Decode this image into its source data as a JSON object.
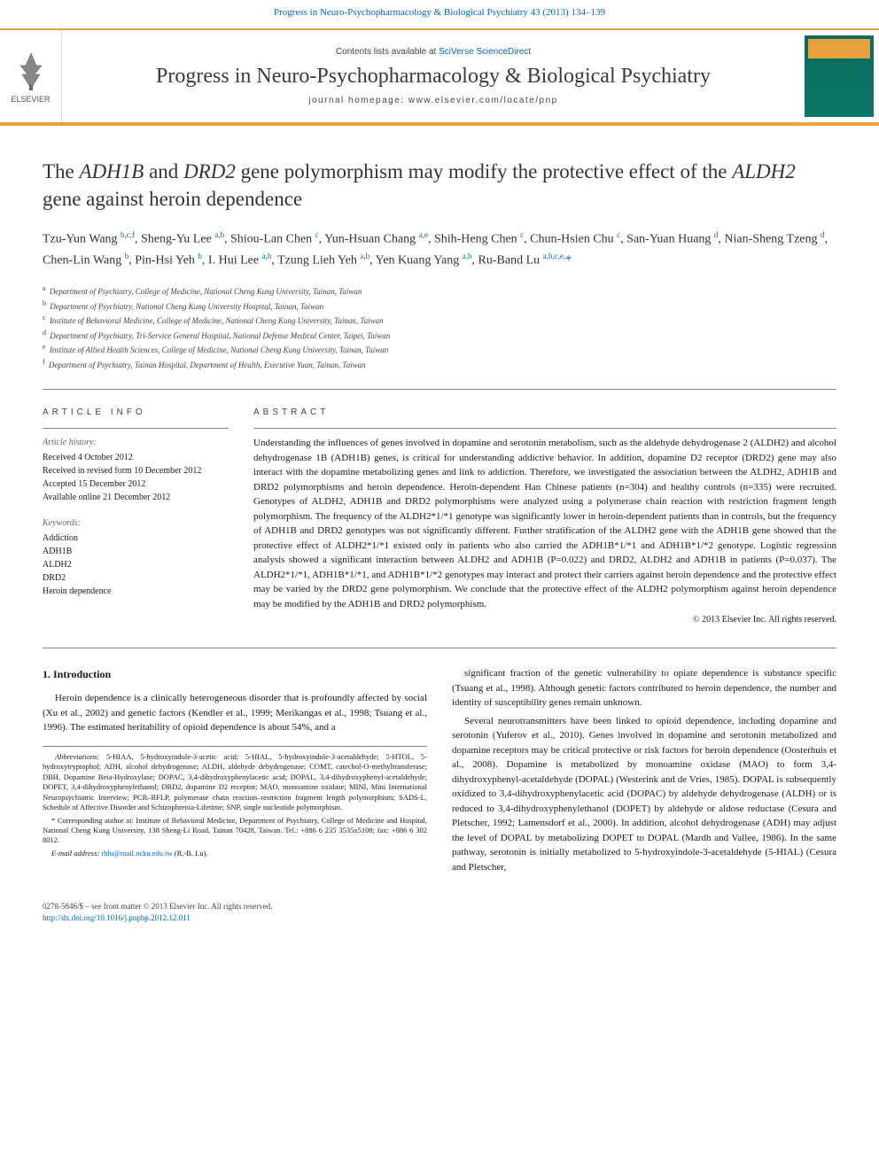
{
  "header": {
    "top_link": "Progress in Neuro-Psychopharmacology & Biological Psychiatry 43 (2013) 134–139",
    "contents_prefix": "Contents lists available at ",
    "contents_link": "SciVerse ScienceDirect",
    "journal_name": "Progress in Neuro-Psychopharmacology & Biological Psychiatry",
    "homepage_label": "journal homepage: www.elsevier.com/locate/pnp",
    "elsevier_label": "ELSEVIER"
  },
  "title": {
    "pre": "The ",
    "g1": "ADH1B",
    "mid1": " and ",
    "g2": "DRD2",
    "mid2": " gene polymorphism may modify the protective effect of the ",
    "g3": "ALDH2",
    "post": " gene against heroin dependence"
  },
  "authors_html": "Tzu-Yun Wang <sup>b,c,f</sup>, Sheng-Yu Lee <sup>a,b</sup>, Shiou-Lan Chen <sup>c</sup>, Yun-Hsuan Chang <sup>a,e</sup>, Shih-Heng Chen <sup>c</sup>, Chun-Hsien Chu <sup>c</sup>, San-Yuan Huang <sup>d</sup>, Nian-Sheng Tzeng <sup>d</sup>, Chen-Lin Wang <sup>b</sup>, Pin-Hsi Yeh <sup>b</sup>, I. Hui Lee <sup>a,b</sup>, Tzung Lieh Yeh <sup>a,b</sup>, Yen Kuang Yang <sup>a,b</sup>, Ru-Band Lu <sup>a,b,c,e,</sup><span class='corr'>*</span>",
  "affiliations": [
    {
      "sup": "a",
      "text": "Department of Psychiatry, College of Medicine, National Cheng Kung University, Tainan, Taiwan"
    },
    {
      "sup": "b",
      "text": "Department of Psychiatry, National Cheng Kung University Hospital, Tainan, Taiwan"
    },
    {
      "sup": "c",
      "text": "Institute of Behavioral Medicine, College of Medicine, National Cheng Kung University, Tainan, Taiwan"
    },
    {
      "sup": "d",
      "text": "Department of Psychiatry, Tri-Service General Hospital, National Defense Medical Center, Taipei, Taiwan"
    },
    {
      "sup": "e",
      "text": "Institute of Allied Health Sciences, College of Medicine, National Cheng Kung University, Tainan, Taiwan"
    },
    {
      "sup": "f",
      "text": "Department of Psychiatry, Tainan Hospital, Department of Health, Executive Yuan, Tainan, Taiwan"
    }
  ],
  "article_info": {
    "label": "ARTICLE INFO",
    "history_label": "Article history:",
    "history": [
      "Received 4 October 2012",
      "Received in revised form 10 December 2012",
      "Accepted 15 December 2012",
      "Available online 21 December 2012"
    ],
    "keywords_label": "Keywords:",
    "keywords": [
      "Addiction",
      "ADH1B",
      "ALDH2",
      "DRD2",
      "Heroin dependence"
    ]
  },
  "abstract": {
    "label": "ABSTRACT",
    "text": "Understanding the influences of genes involved in dopamine and serotonin metabolism, such as the aldehyde dehydrogenase 2 (ALDH2) and alcohol dehydrogenase 1B (ADH1B) genes, is critical for understanding addictive behavior. In addition, dopamine D2 receptor (DRD2) gene may also interact with the dopamine metabolizing genes and link to addiction. Therefore, we investigated the association between the ALDH2, ADH1B and DRD2 polymorphisms and heroin dependence. Heroin-dependent Han Chinese patients (n=304) and healthy controls (n=335) were recruited. Genotypes of ALDH2, ADH1B and DRD2 polymorphisms were analyzed using a polymerase chain reaction with restriction fragment length polymorphism. The frequency of the ALDH2*1/*1 genotype was significantly lower in heroin-dependent patients than in controls, but the frequency of ADH1B and DRD2 genotypes was not significantly different. Further stratification of the ALDH2 gene with the ADH1B gene showed that the protective effect of ALDH2*1/*1 existed only in patients who also carried the ADH1B*1/*1 and ADH1B*1/*2 genotype. Logistic regression analysis showed a significant interaction between ALDH2 and ADH1B (P=0.022) and DRD2, ALDH2 and ADH1B in patients (P=0.037). The ALDH2*1/*1, ADH1B*1/*1, and ADH1B*1/*2 genotypes may interact and protect their carriers against heroin dependence and the protective effect may be varied by the DRD2 gene polymorphism. We conclude that the protective effect of the ALDH2 polymorphism against heroin dependence may be modified by the ADH1B and DRD2 polymorphism.",
    "copyright": "© 2013 Elsevier Inc. All rights reserved."
  },
  "body": {
    "heading": "1. Introduction",
    "left_p1": "Heroin dependence is a clinically heterogeneous disorder that is profoundly affected by social (Xu et al., 2002) and genetic factors (Kendler et al., 1999; Merikangas et al., 1998; Tsuang et al., 1996). The estimated heritability of opioid dependence is about 54%, and a",
    "right_p1": "significant fraction of the genetic vulnerability to opiate dependence is substance specific (Tsuang et al., 1998). Although genetic factors contributed to heroin dependence, the number and identity of susceptibility genes remain unknown.",
    "right_p2": "Several neurotransmitters have been linked to opioid dependence, including dopamine and serotonin (Yuferov et al., 2010). Genes involved in dopamine and serotonin metabolized and dopamine receptors may be critical protective or risk factors for heroin dependence (Oosterhuis et al., 2008). Dopamine is metabolized by monoamine oxidase (MAO) to form 3,4-dihydroxyphenyl-acetaldehyde (DOPAL) (Westerink and de Vries, 1985). DOPAL is subsequently oxidized to 3,4-dihydroxyphenylacetic acid (DOPAC) by aldehyde dehydrogenase (ALDH) or is reduced to 3,4-dihydroxyphenylethanol (DOPET) by aldehyde or aldose reductase (Cesura and Pletscher, 1992; Lamensdorf et al., 2000). In addition, alcohol dehydrogenase (ADH) may adjust the level of DOPAL by metabolizing DOPET to DOPAL (Mardh and Vallee, 1986). In the same pathway, serotonin is initially metabolized to 5-hydroxyindole-3-acetaldehyde (5-HIAL) (Cesura and Pletscher,"
  },
  "footnotes": {
    "abbrev_label": "Abbreviations:",
    "abbrev_text": " 5-HIAA, 5-hydroxyindole-3-acetic acid; 5-HIAL, 5-hydroxyindole-3-acetaldehyde; 5-HTOL, 5-hydroxytryptophol; ADH, alcohol dehydrogenase; ALDH, aldehyde dehydrogenase; COMT, catechol-O-methyltransferase; DBH, Dopamine Beta-Hydroxylase; DOPAC, 3,4-dihydroxyphenylacetic acid; DOPAL, 3,4-dihydroxyphenyl-acetaldehyde; DOPET, 3,4-dihydroxyphenylethanol; DRD2, dopamine D2 receptor; MAO, monoamine oxidase; MINI, Mini International Neuropsychiatric Interview; PCR–RFLP, polymerase chain reaction–restriction fragment length polymorphism; SADS-L, Schedule of Affective Disorder and Schizophrenia-Lifetime; SNP, single nucleotide polymorphism.",
    "corr_label": "* Corresponding author at:",
    "corr_text": " Institute of Behavioral Medicine, Department of Psychiatry, College of Medicine and Hospital, National Cheng Kung University, 138 Sheng-Li Road, Tainan 70428, Taiwan. Tel.: +886 6 235 3535x5108; fax: +886 6 302 8012.",
    "email_label": "E-mail address:",
    "email": " rblu@mail.ncku.edu.tw",
    "email_suffix": " (R.-B. Lu)."
  },
  "footer": {
    "copyright": "0278-5846/$ – see front matter © 2013 Elsevier Inc. All rights reserved.",
    "doi": "http://dx.doi.org/10.1016/j.pnpbp.2012.12.011"
  },
  "colors": {
    "accent": "#e8a23d",
    "link": "#0066cc",
    "text": "#1a1a1a",
    "cover_bg": "#0a7866"
  }
}
